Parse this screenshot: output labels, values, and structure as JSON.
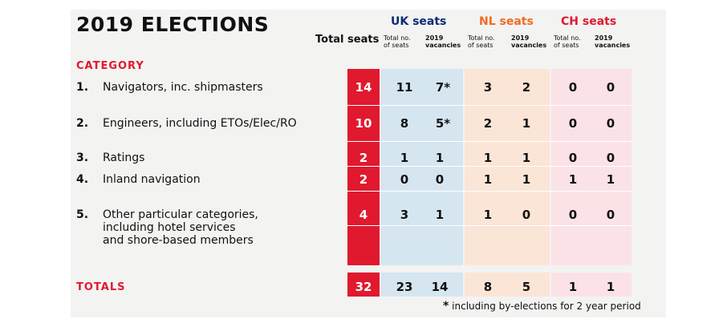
{
  "title": "2019 ELECTIONS",
  "total_seats_header": "Total seats",
  "groups": [
    {
      "label": "UK seats",
      "color": "#0b2a7a"
    },
    {
      "label": "NL seats",
      "color": "#f26a21"
    },
    {
      "label": "CH seats",
      "color": "#e0192f"
    }
  ],
  "subheaders": {
    "uk_total": "Total no.\nof seats",
    "uk_vac": "2019\nvacancies",
    "nl_total": "Total no.\nof seats",
    "nl_vac": "2019\nvacancies",
    "ch_total": "Total no.\nof seats",
    "ch_vac": "2019\nvacancies"
  },
  "category_header": "CATEGORY",
  "rows": [
    {
      "num": "1.",
      "label": "Navigators, inc. shipmasters",
      "total": "14",
      "uk_total": "11",
      "uk_vac": "7*",
      "nl_total": "3",
      "nl_vac": "2",
      "ch_total": "0",
      "ch_vac": "0"
    },
    {
      "num": "2.",
      "label": "Engineers, including ETOs/Elec/RO",
      "total": "10",
      "uk_total": "8",
      "uk_vac": "5*",
      "nl_total": "2",
      "nl_vac": "1",
      "ch_total": "0",
      "ch_vac": "0"
    },
    {
      "num": "3.",
      "label": "Ratings",
      "total": "2",
      "uk_total": "1",
      "uk_vac": "1",
      "nl_total": "1",
      "nl_vac": "1",
      "ch_total": "0",
      "ch_vac": "0"
    },
    {
      "num": "4.",
      "label": "Inland navigation",
      "total": "2",
      "uk_total": "0",
      "uk_vac": "0",
      "nl_total": "1",
      "nl_vac": "1",
      "ch_total": "1",
      "ch_vac": "1"
    },
    {
      "num": "5.",
      "label": "Other particular categories,\nincluding hotel services\nand shore-based members",
      "total": "4",
      "uk_total": "3",
      "uk_vac": "1",
      "nl_total": "1",
      "nl_vac": "0",
      "ch_total": "0",
      "ch_vac": "0"
    }
  ],
  "totals": {
    "label": "TOTALS",
    "total": "32",
    "uk_total": "23",
    "uk_vac": "14",
    "nl_total": "8",
    "nl_vac": "5",
    "ch_total": "1",
    "ch_vac": "1"
  },
  "footnote_star": "*",
  "footnote_text": "including by-elections for 2 year period",
  "colors": {
    "total_column": "#e0192f",
    "uk_fill": "#d5e6f1",
    "nl_fill": "#fbe5d6",
    "ch_fill": "#fbe2e6",
    "panel": "#f3f3f2"
  }
}
